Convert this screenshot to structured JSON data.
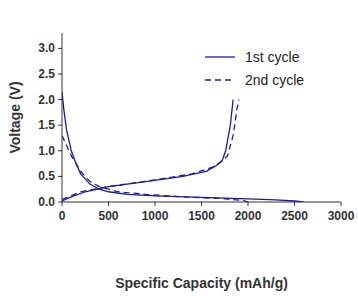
{
  "chart_data": {
    "type": "line",
    "x_label": "Specific Capacity (mAh/g)",
    "y_label": "Voltage (V)",
    "xlim": [
      0,
      3000
    ],
    "ylim": [
      0,
      3.3
    ],
    "xticks": [
      0,
      500,
      1000,
      1500,
      2000,
      2500,
      3000
    ],
    "yticks": [
      {
        "value": 0,
        "label": "0.0"
      },
      {
        "value": 0.5,
        "label": "0.5"
      },
      {
        "value": 1,
        "label": "1.0"
      },
      {
        "value": 1.5,
        "label": "1.5"
      },
      {
        "value": 2,
        "label": "2.0"
      },
      {
        "value": 2.5,
        "label": "2.5"
      },
      {
        "value": 3,
        "label": "3.0"
      }
    ],
    "grid": false,
    "legend": "upper right",
    "series": [
      {
        "name": "1st cycle",
        "color": "#1c1c9c",
        "line_style": "solid",
        "x": [
          0,
          20,
          50,
          100,
          150,
          200,
          300,
          400,
          500,
          700,
          1000,
          1500,
          2000,
          2300,
          2500,
          2600,
          null,
          0,
          100,
          250,
          500,
          900,
          1300,
          1550,
          1650,
          1720,
          1760,
          1810,
          1840
        ],
        "values": [
          2.15,
          1.8,
          1.4,
          1.0,
          0.75,
          0.55,
          0.35,
          0.25,
          0.2,
          0.15,
          0.12,
          0.09,
          0.06,
          0.04,
          0.02,
          0.0,
          null,
          0.02,
          0.1,
          0.2,
          0.3,
          0.4,
          0.5,
          0.6,
          0.7,
          0.8,
          1.0,
          1.5,
          2.0
        ]
      },
      {
        "name": "2nd cycle",
        "color": "#1c1c9c",
        "line_style": "dashed",
        "x": [
          0,
          100,
          200,
          300,
          400,
          600,
          900,
          1300,
          1700,
          1950,
          2000,
          null,
          0,
          200,
          500,
          1000,
          1400,
          1650,
          1780,
          1840,
          1880,
          1900
        ],
        "values": [
          1.3,
          0.9,
          0.6,
          0.4,
          0.3,
          0.2,
          0.15,
          0.1,
          0.07,
          0.03,
          0.0,
          null,
          0.05,
          0.2,
          0.3,
          0.43,
          0.55,
          0.7,
          0.9,
          1.3,
          1.8,
          2.0
        ]
      }
    ]
  }
}
